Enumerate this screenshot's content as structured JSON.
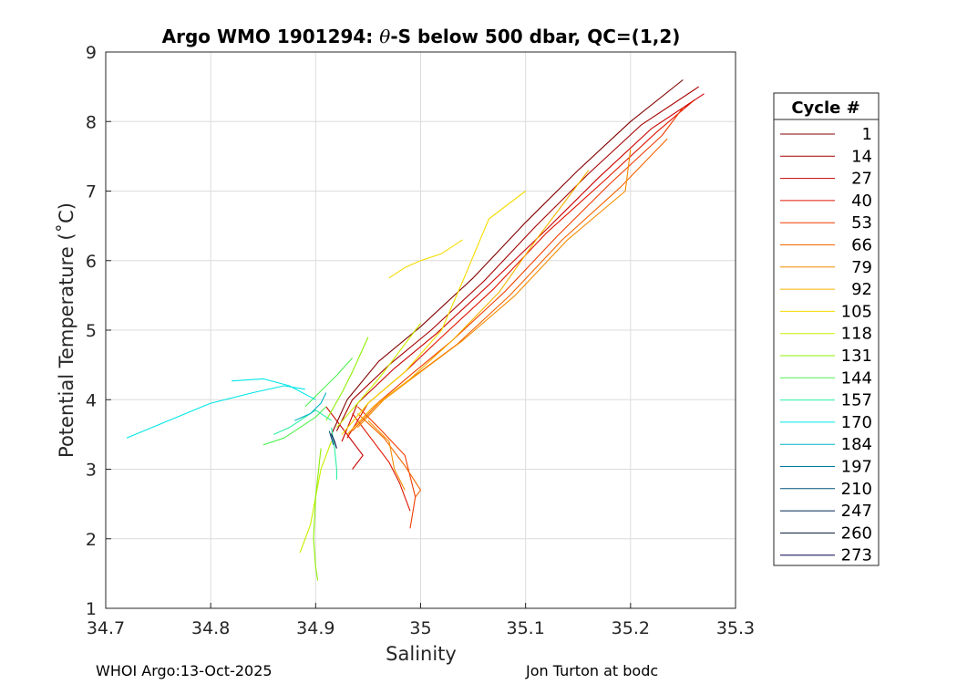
{
  "chart_data": {
    "type": "line",
    "title_prefix": "Argo WMO 1901294: ",
    "title_theta": "θ",
    "title_suffix": "-S below 500 dbar,  QC=(1,2)",
    "xlabel": "Salinity",
    "ylabel": "Potential Temperature (˚C)",
    "xlim": [
      34.7,
      35.3
    ],
    "ylim": [
      1,
      9
    ],
    "xticks": [
      "34.7",
      "34.8",
      "34.9",
      "35",
      "35.1",
      "35.2",
      "35.3"
    ],
    "yticks": [
      "1",
      "2",
      "3",
      "4",
      "5",
      "6",
      "7",
      "8",
      "9"
    ],
    "grid": true,
    "legend": {
      "title": "Cycle #",
      "placement": "outside-right",
      "entries": [
        {
          "label": "1",
          "color": "#800000"
        },
        {
          "label": "14",
          "color": "#a50000"
        },
        {
          "label": "27",
          "color": "#c80000"
        },
        {
          "label": "40",
          "color": "#e01400"
        },
        {
          "label": "53",
          "color": "#f03c00"
        },
        {
          "label": "66",
          "color": "#f56400"
        },
        {
          "label": "79",
          "color": "#f58c00"
        },
        {
          "label": "92",
          "color": "#f5b400"
        },
        {
          "label": "105",
          "color": "#f5dc00"
        },
        {
          "label": "118",
          "color": "#c8f000"
        },
        {
          "label": "131",
          "color": "#8cf000"
        },
        {
          "label": "144",
          "color": "#50f050"
        },
        {
          "label": "157",
          "color": "#28f0a0"
        },
        {
          "label": "170",
          "color": "#00e6e6"
        },
        {
          "label": "184",
          "color": "#00b4c8"
        },
        {
          "label": "197",
          "color": "#0078a0"
        },
        {
          "label": "210",
          "color": "#005078"
        },
        {
          "label": "247",
          "color": "#002850"
        },
        {
          "label": "260",
          "color": "#001430"
        },
        {
          "label": "273",
          "color": "#000050"
        }
      ]
    },
    "series": [
      {
        "color": "#800000",
        "x": [
          34.915,
          34.93,
          34.96,
          35.0,
          35.05,
          35.1,
          35.15,
          35.2,
          35.25
        ],
        "y": [
          3.5,
          4.0,
          4.55,
          5.05,
          5.75,
          6.55,
          7.3,
          8.0,
          8.6
        ]
      },
      {
        "color": "#a50000",
        "x": [
          34.92,
          34.935,
          34.97,
          35.01,
          35.06,
          35.11,
          35.16,
          35.21,
          35.265
        ],
        "y": [
          3.55,
          4.0,
          4.5,
          5.0,
          5.7,
          6.5,
          7.25,
          7.95,
          8.5
        ]
      },
      {
        "color": "#c80000",
        "x": [
          34.925,
          34.94,
          34.975,
          35.015,
          35.065,
          35.12,
          35.17,
          35.22,
          35.27
        ],
        "y": [
          3.4,
          3.95,
          4.45,
          4.95,
          5.65,
          6.45,
          7.2,
          7.9,
          8.4
        ]
      },
      {
        "color": "#c80000",
        "x": [
          34.91,
          34.925,
          34.945,
          34.935
        ],
        "y": [
          3.9,
          3.6,
          3.2,
          3.0
        ]
      },
      {
        "color": "#e01400",
        "x": [
          34.93,
          34.95,
          34.985,
          35.02,
          35.07,
          35.12,
          35.175,
          35.225,
          35.26
        ],
        "y": [
          3.45,
          3.95,
          4.4,
          4.9,
          5.6,
          6.4,
          7.15,
          7.85,
          8.3
        ]
      },
      {
        "color": "#e01400",
        "x": [
          34.935,
          34.95,
          34.97,
          34.98,
          34.99
        ],
        "y": [
          3.8,
          3.5,
          3.1,
          2.8,
          2.4
        ]
      },
      {
        "color": "#f03c00",
        "x": [
          34.93,
          34.955,
          34.99,
          35.03,
          35.08,
          35.13,
          35.18,
          35.23,
          35.25
        ],
        "y": [
          3.5,
          3.9,
          4.35,
          4.85,
          5.55,
          6.35,
          7.1,
          7.8,
          8.2
        ]
      },
      {
        "color": "#f03c00",
        "x": [
          34.94,
          34.96,
          34.985,
          34.995,
          34.99
        ],
        "y": [
          3.9,
          3.6,
          3.2,
          2.6,
          2.15
        ]
      },
      {
        "color": "#f56400",
        "x": [
          34.935,
          34.96,
          34.995,
          35.035,
          35.085,
          35.135,
          35.19,
          35.235
        ],
        "y": [
          3.55,
          3.95,
          4.35,
          4.8,
          5.5,
          6.3,
          7.05,
          7.75
        ]
      },
      {
        "color": "#f56400",
        "x": [
          34.94,
          34.965,
          34.985,
          35.0,
          34.995
        ],
        "y": [
          3.8,
          3.45,
          3.05,
          2.7,
          2.6
        ]
      },
      {
        "color": "#f58c00",
        "x": [
          34.94,
          34.965,
          35.0,
          35.04,
          35.09,
          35.14,
          35.195,
          35.2
        ],
        "y": [
          3.6,
          4.0,
          4.4,
          4.85,
          5.5,
          6.3,
          7.0,
          7.6
        ]
      },
      {
        "color": "#f58c00",
        "x": [
          34.95,
          34.97,
          34.975,
          34.985
        ],
        "y": [
          3.7,
          3.4,
          3.0,
          2.7
        ]
      },
      {
        "color": "#f5b400",
        "x": [
          34.93,
          34.955,
          34.99,
          35.03,
          35.075,
          35.11,
          35.16
        ],
        "y": [
          3.5,
          3.9,
          4.3,
          4.85,
          5.55,
          6.3,
          7.3
        ]
      },
      {
        "color": "#f5dc00",
        "x": [
          34.925,
          34.95,
          34.985,
          35.02,
          35.04,
          35.065,
          35.1
        ],
        "y": [
          3.5,
          3.95,
          4.4,
          5.0,
          5.7,
          6.6,
          7.0
        ]
      },
      {
        "color": "#f5dc00",
        "x": [
          34.97,
          34.985,
          35.0,
          35.02,
          35.04
        ],
        "y": [
          5.75,
          5.9,
          6.0,
          6.1,
          6.3
        ]
      },
      {
        "color": "#c8f000",
        "x": [
          34.92,
          34.94,
          34.96,
          34.98,
          35.0
        ],
        "y": [
          3.6,
          3.95,
          4.3,
          4.7,
          5.1
        ]
      },
      {
        "color": "#c8f000",
        "x": [
          34.915,
          34.905,
          34.9,
          34.895,
          34.885
        ],
        "y": [
          3.4,
          3.0,
          2.6,
          2.2,
          1.8
        ]
      },
      {
        "color": "#8cf000",
        "x": [
          34.91,
          34.925,
          34.935,
          34.95
        ],
        "y": [
          3.7,
          4.1,
          4.4,
          4.9
        ]
      },
      {
        "color": "#8cf000",
        "x": [
          34.905,
          34.9,
          34.898,
          34.9,
          34.902
        ],
        "y": [
          3.3,
          2.6,
          2.0,
          1.6,
          1.4
        ]
      },
      {
        "color": "#50f050",
        "x": [
          34.85,
          34.87,
          34.885,
          34.9,
          34.91
        ],
        "y": [
          3.35,
          3.45,
          3.6,
          3.75,
          3.9
        ]
      },
      {
        "color": "#50f050",
        "x": [
          34.89,
          34.9,
          34.91,
          34.92,
          34.935
        ],
        "y": [
          3.9,
          4.05,
          4.2,
          4.35,
          4.6
        ]
      },
      {
        "color": "#28f0a0",
        "x": [
          34.86,
          34.875,
          34.89,
          34.9,
          34.915
        ],
        "y": [
          3.5,
          3.6,
          3.75,
          3.85,
          3.7
        ]
      },
      {
        "color": "#28f0a0",
        "x": [
          34.915,
          34.918,
          34.92,
          34.92
        ],
        "y": [
          3.6,
          3.3,
          3.0,
          2.85
        ]
      },
      {
        "color": "#00e6e6",
        "x": [
          34.72,
          34.76,
          34.8,
          34.84,
          34.87,
          34.89
        ],
        "y": [
          3.45,
          3.7,
          3.95,
          4.1,
          4.2,
          4.15
        ]
      },
      {
        "color": "#00e6e6",
        "x": [
          34.82,
          34.85,
          34.875,
          34.9
        ],
        "y": [
          4.27,
          4.3,
          4.2,
          4.0
        ]
      },
      {
        "color": "#00b4c8",
        "x": [
          34.88,
          34.895,
          34.905,
          34.91
        ],
        "y": [
          3.7,
          3.8,
          3.95,
          4.1
        ]
      },
      {
        "color": "#005078",
        "x": [
          34.913,
          34.915,
          34.917
        ],
        "y": [
          3.55,
          3.45,
          3.35
        ]
      },
      {
        "color": "#000050",
        "x": [
          34.915,
          34.918,
          34.92
        ],
        "y": [
          3.5,
          3.4,
          3.3
        ]
      }
    ]
  },
  "footer": {
    "left": "WHOI Argo:13-Oct-2025",
    "right": "Jon Turton at bodc"
  }
}
